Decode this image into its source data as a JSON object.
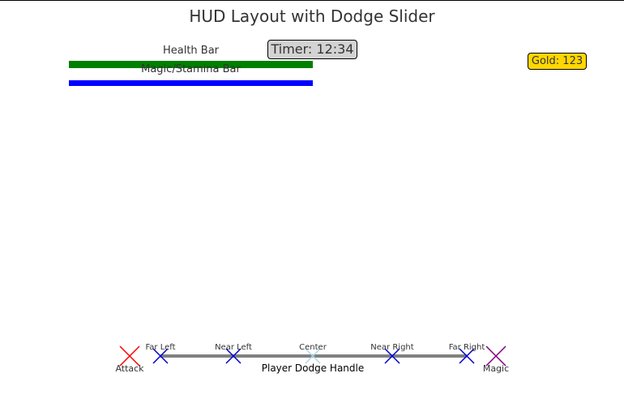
{
  "title": "HUD Layout with Dodge Slider",
  "hud": {
    "health_label": "Health Bar",
    "magic_label": "Magic/Stamina Bar",
    "timer_text": "Timer: 12:34",
    "gold_text": "Gold: 123",
    "health_level": 1.0,
    "magic_level": 1.0
  },
  "slider": {
    "handle_label": "Player Dodge Handle",
    "positions": [
      {
        "label": "Far Left",
        "selected": false
      },
      {
        "label": "Near Left",
        "selected": false
      },
      {
        "label": "Center",
        "selected": true
      },
      {
        "label": "Near Right",
        "selected": false
      },
      {
        "label": "Far Right",
        "selected": false
      }
    ],
    "attack_label": "Attack",
    "magic_label": "Magic"
  },
  "colors": {
    "health": "#008000",
    "magic": "#0000ff",
    "timer_bg": "#d3d3d3",
    "gold_bg": "#ffd700",
    "slider_track": "#808080",
    "position_marker": "#0000cd",
    "selected_marker": "#add8e6",
    "attack_marker": "#ff0000",
    "magic_marker": "#800080"
  },
  "icons": {
    "position_marker": "x-mark-icon",
    "attack": "x-mark-icon",
    "magic": "x-mark-icon"
  }
}
